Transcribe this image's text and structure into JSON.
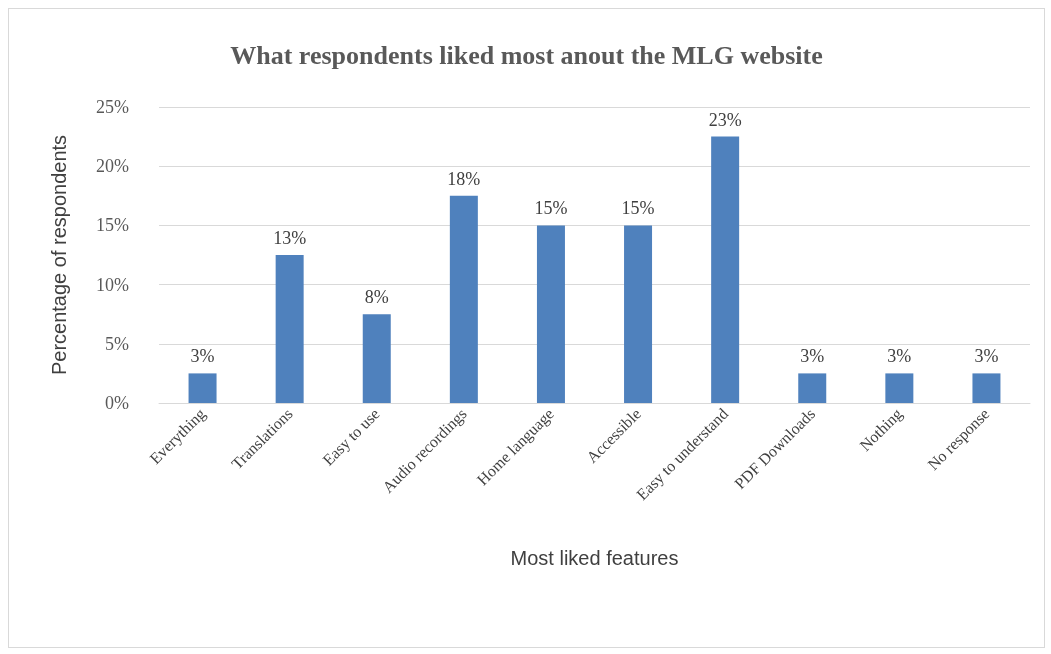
{
  "chart_data": {
    "type": "bar",
    "title": "What respondents liked most anout the MLG website",
    "xlabel": "Most liked features",
    "ylabel": "Percentage of respondents",
    "categories": [
      "Everything",
      "Translations",
      "Easy to use",
      "Audio recordings",
      "Home language",
      "Accessible",
      "Easy to understand",
      "PDF Downloads",
      "Nothing",
      "No response"
    ],
    "values": [
      2.5,
      12.5,
      7.5,
      17.5,
      15,
      15,
      22.5,
      2.5,
      2.5,
      2.5
    ],
    "value_labels": [
      "3%",
      "13%",
      "8%",
      "18%",
      "15%",
      "15%",
      "23%",
      "3%",
      "3%",
      "3%"
    ],
    "color": "#4f81bd",
    "ylim": [
      0,
      25
    ],
    "yticks": [
      {
        "value": 0,
        "label": "0%"
      },
      {
        "value": 5,
        "label": "5%"
      },
      {
        "value": 10,
        "label": "10%"
      },
      {
        "value": 15,
        "label": "15%"
      },
      {
        "value": 20,
        "label": "20%"
      },
      {
        "value": 25,
        "label": "25%"
      }
    ],
    "grid": "y"
  }
}
